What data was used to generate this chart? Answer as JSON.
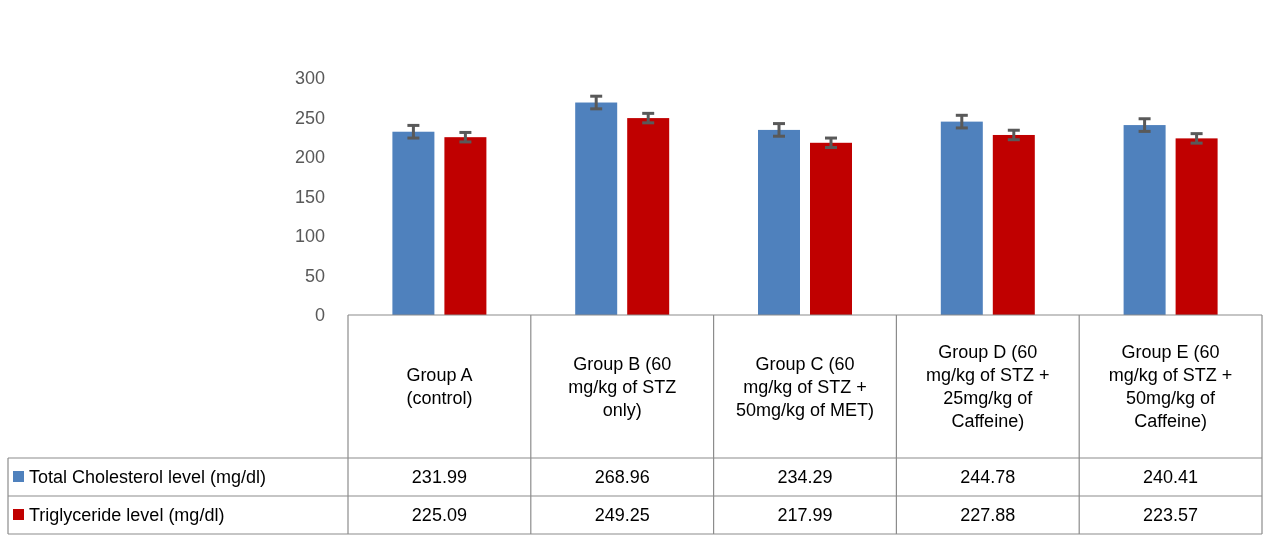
{
  "chart_data": {
    "type": "bar",
    "categories": [
      "Group A (control)",
      "Group B (60 mg/kg of STZ only)",
      "Group C (60 mg/kg of STZ + 50mg/kg of MET)",
      "Group D (60 mg/kg of STZ + 25mg/kg of Caffeine)",
      "Group E (60 mg/kg of STZ + 50mg/kg of Caffeine)"
    ],
    "series": [
      {
        "name": "Total Cholesterol level (mg/dl)",
        "color": "#4f81bd",
        "values": [
          231.99,
          268.96,
          234.29,
          244.78,
          240.41
        ],
        "errors": [
          8,
          8,
          8,
          8,
          8
        ]
      },
      {
        "name": "Triglyceride level (mg/dl)",
        "color": "#c00000",
        "values": [
          225.09,
          249.25,
          217.99,
          227.88,
          223.57
        ],
        "errors": [
          6,
          6,
          6,
          6,
          6
        ]
      }
    ],
    "ylim": [
      0,
      300
    ],
    "yticks": [
      0,
      50,
      100,
      150,
      200,
      250,
      300
    ],
    "grid": false,
    "legend": "bottom left",
    "data_labels": true
  }
}
